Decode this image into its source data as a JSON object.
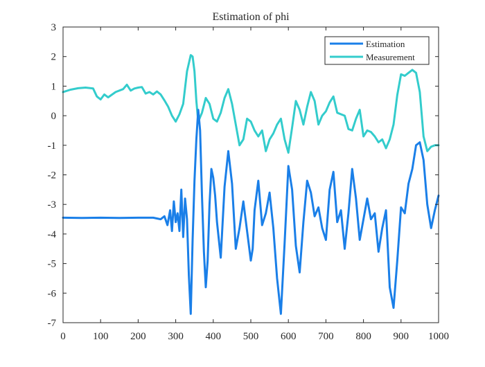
{
  "chart_data": {
    "type": "line",
    "title": "Estimation of phi",
    "xlabel": "",
    "ylabel": "",
    "xlim": [
      0,
      1000
    ],
    "ylim": [
      -7,
      3
    ],
    "xticks": [
      0,
      100,
      200,
      300,
      400,
      500,
      600,
      700,
      800,
      900,
      1000
    ],
    "xtick_labels": [
      "0",
      "100",
      "200",
      "300",
      "400",
      "500",
      "600",
      "700",
      "800",
      "900",
      "1000"
    ],
    "yticks": [
      3,
      2,
      1,
      0,
      -1,
      -2,
      -3,
      -4,
      -5,
      -6,
      -7
    ],
    "ytick_labels": [
      "3",
      "2",
      "1",
      "0",
      "-1",
      "-2",
      "-3",
      "-4",
      "-5",
      "-6",
      "-7"
    ],
    "grid": false,
    "legend_position": "top-right",
    "series": [
      {
        "name": "Estimation",
        "color": "#1a7fe8",
        "x": [
          0,
          50,
          100,
          150,
          200,
          240,
          260,
          270,
          278,
          285,
          290,
          295,
          300,
          305,
          310,
          315,
          320,
          325,
          330,
          335,
          340,
          345,
          350,
          355,
          360,
          365,
          370,
          375,
          380,
          385,
          390,
          395,
          400,
          405,
          410,
          420,
          430,
          440,
          450,
          460,
          470,
          480,
          490,
          500,
          505,
          510,
          520,
          530,
          540,
          550,
          560,
          570,
          580,
          590,
          600,
          610,
          620,
          630,
          640,
          650,
          660,
          670,
          680,
          690,
          700,
          710,
          720,
          730,
          740,
          750,
          760,
          770,
          780,
          790,
          800,
          810,
          820,
          830,
          840,
          850,
          860,
          870,
          880,
          890,
          900,
          910,
          920,
          930,
          940,
          950,
          960,
          970,
          980,
          990,
          1000
        ],
        "values": [
          -3.45,
          -3.46,
          -3.45,
          -3.46,
          -3.45,
          -3.45,
          -3.5,
          -3.4,
          -3.7,
          -3.2,
          -3.9,
          -2.9,
          -3.6,
          -3.3,
          -3.9,
          -2.5,
          -4.1,
          -2.8,
          -3.5,
          -5.4,
          -6.7,
          -4.2,
          -2.2,
          -0.8,
          0.2,
          -0.5,
          -2.7,
          -4.6,
          -5.8,
          -4.9,
          -3.0,
          -1.8,
          -2.1,
          -2.7,
          -3.6,
          -4.8,
          -2.4,
          -1.2,
          -2.3,
          -4.5,
          -3.8,
          -2.9,
          -3.9,
          -4.9,
          -4.5,
          -3.2,
          -2.2,
          -3.7,
          -3.3,
          -2.6,
          -3.8,
          -5.5,
          -6.7,
          -4.3,
          -1.7,
          -2.5,
          -4.4,
          -5.3,
          -3.6,
          -2.2,
          -2.6,
          -3.4,
          -3.1,
          -3.8,
          -4.2,
          -2.5,
          -1.9,
          -3.6,
          -3.2,
          -4.5,
          -3.3,
          -1.8,
          -2.8,
          -4.2,
          -3.5,
          -2.8,
          -3.5,
          -3.3,
          -4.6,
          -3.8,
          -3.2,
          -5.8,
          -6.5,
          -4.9,
          -3.1,
          -3.3,
          -2.3,
          -1.8,
          -1.0,
          -0.9,
          -1.5,
          -3.0,
          -3.8,
          -3.2,
          -2.7
        ]
      },
      {
        "name": "Measurement",
        "color": "#33cccc",
        "x": [
          0,
          20,
          40,
          60,
          80,
          90,
          100,
          110,
          120,
          140,
          160,
          170,
          180,
          190,
          200,
          210,
          220,
          230,
          240,
          250,
          260,
          270,
          280,
          290,
          300,
          310,
          320,
          330,
          340,
          345,
          350,
          355,
          360,
          370,
          380,
          390,
          400,
          410,
          420,
          430,
          440,
          450,
          460,
          470,
          480,
          490,
          500,
          510,
          520,
          530,
          540,
          550,
          560,
          570,
          580,
          590,
          600,
          610,
          620,
          630,
          640,
          650,
          660,
          670,
          680,
          690,
          700,
          710,
          720,
          730,
          740,
          750,
          760,
          770,
          780,
          790,
          800,
          810,
          820,
          830,
          840,
          850,
          860,
          870,
          880,
          890,
          900,
          910,
          920,
          930,
          940,
          950,
          960,
          970,
          980,
          990,
          1000
        ],
        "values": [
          0.8,
          0.88,
          0.93,
          0.95,
          0.92,
          0.65,
          0.55,
          0.72,
          0.62,
          0.8,
          0.9,
          1.05,
          0.85,
          0.92,
          0.95,
          0.97,
          0.75,
          0.8,
          0.72,
          0.82,
          0.72,
          0.52,
          0.3,
          0.0,
          -0.2,
          0.05,
          0.4,
          1.5,
          2.05,
          2.0,
          1.5,
          0.5,
          -0.2,
          0.1,
          0.6,
          0.4,
          -0.1,
          -0.2,
          0.1,
          0.6,
          0.9,
          0.4,
          -0.3,
          -1.0,
          -0.8,
          -0.1,
          -0.2,
          -0.5,
          -0.7,
          -0.5,
          -1.2,
          -0.8,
          -0.6,
          -0.3,
          -0.1,
          -0.8,
          -1.25,
          -0.4,
          0.5,
          0.2,
          -0.3,
          0.3,
          0.8,
          0.5,
          -0.3,
          0.0,
          0.15,
          0.45,
          0.65,
          0.1,
          0.05,
          0.0,
          -0.45,
          -0.5,
          -0.1,
          0.2,
          -0.7,
          -0.5,
          -0.55,
          -0.7,
          -0.9,
          -0.8,
          -1.1,
          -0.8,
          -0.3,
          0.7,
          1.4,
          1.35,
          1.45,
          1.55,
          1.45,
          0.8,
          -0.7,
          -1.2,
          -1.05,
          -1.0,
          -1.0
        ]
      }
    ]
  }
}
